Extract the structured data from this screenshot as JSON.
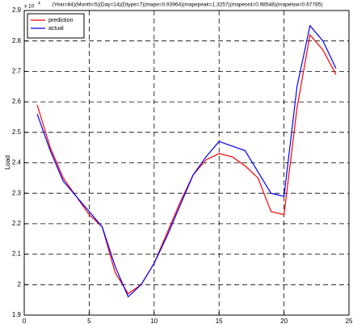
{
  "chart_data": {
    "type": "line",
    "title": "(Year=84)(Month=5)(Day=14)(Dtype=7)(mape=0.93964)(mapepeak=1.3257)(mapeord=0.98548)(mapelow=0.67785)",
    "ylabel": "Load",
    "y_multiplier": "x 10",
    "y_multiplier_exp": "4",
    "x": [
      1,
      2,
      3,
      4,
      5,
      6,
      7,
      8,
      9,
      10,
      11,
      12,
      13,
      14,
      15,
      16,
      17,
      18,
      19,
      20,
      21,
      22,
      23,
      24
    ],
    "series": [
      {
        "name": "prediction",
        "color": "#ff0000",
        "values": [
          2.59,
          2.45,
          2.35,
          2.29,
          2.23,
          2.19,
          2.04,
          1.97,
          2.0,
          2.07,
          2.17,
          2.27,
          2.36,
          2.41,
          2.43,
          2.42,
          2.39,
          2.35,
          2.24,
          2.23,
          2.58,
          2.82,
          2.77,
          2.69
        ]
      },
      {
        "name": "actual",
        "color": "#0000ff",
        "values": [
          2.56,
          2.44,
          2.34,
          2.29,
          2.24,
          2.19,
          2.06,
          1.96,
          2.0,
          2.07,
          2.16,
          2.26,
          2.36,
          2.42,
          2.47,
          2.455,
          2.44,
          2.37,
          2.3,
          2.29,
          2.65,
          2.85,
          2.8,
          2.71
        ]
      }
    ],
    "xlim": [
      0,
      25
    ],
    "xticks": [
      0,
      5,
      10,
      15,
      20,
      25
    ],
    "ylim": [
      1.9,
      2.9
    ],
    "yticks": [
      1.9,
      2,
      2.1,
      2.2,
      2.3,
      2.4,
      2.5,
      2.6,
      2.7,
      2.8,
      2.9
    ],
    "grid": true,
    "legend": "upper left"
  }
}
